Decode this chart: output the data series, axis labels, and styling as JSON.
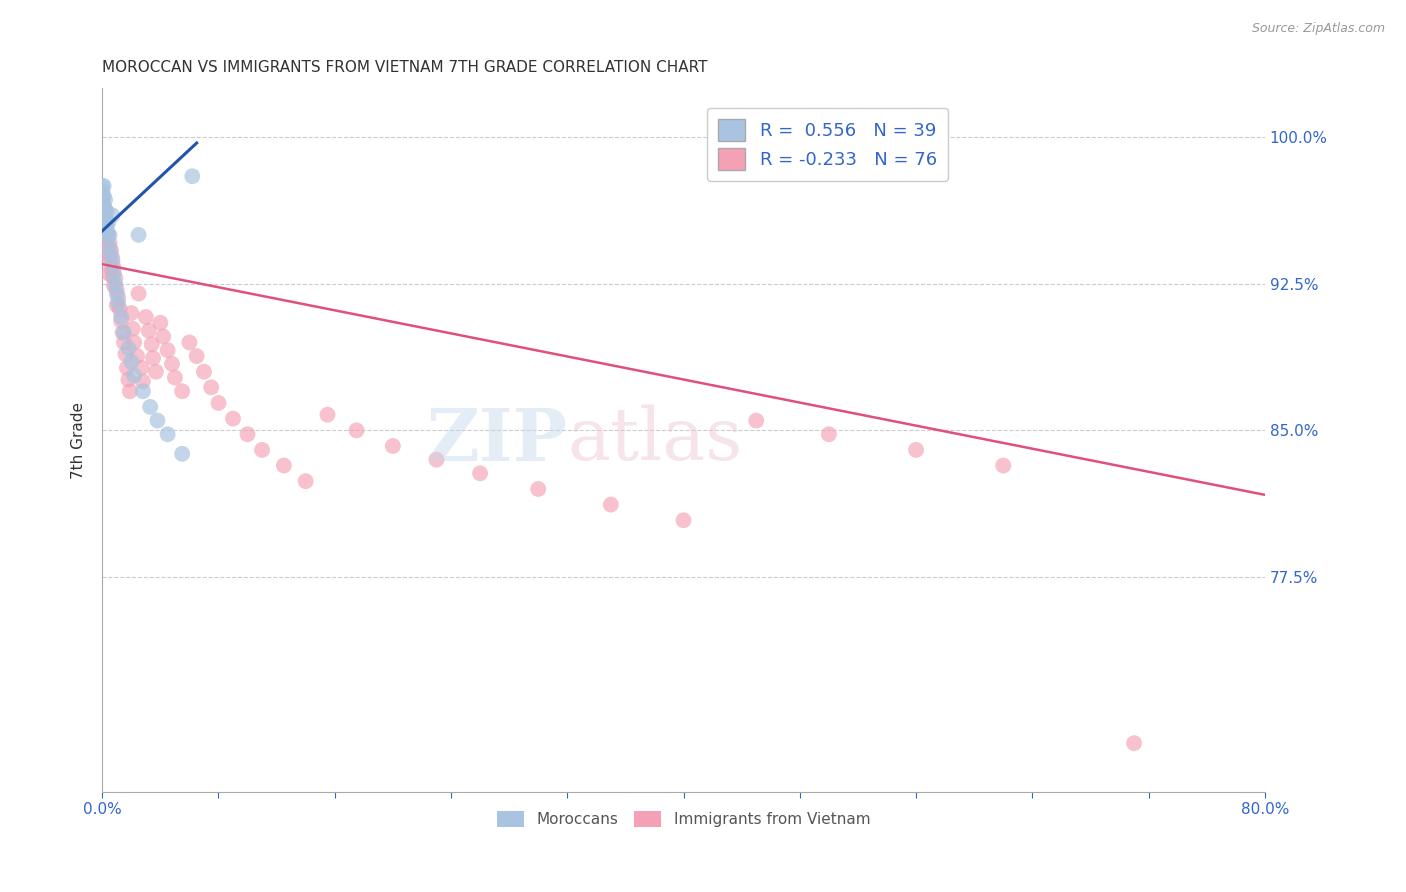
{
  "title": "MOROCCAN VS IMMIGRANTS FROM VIETNAM 7TH GRADE CORRELATION CHART",
  "source": "Source: ZipAtlas.com",
  "ylabel": "7th Grade",
  "blue_color": "#a8c4e0",
  "pink_color": "#f4a0b5",
  "blue_line_color": "#2255aa",
  "pink_line_color": "#e0507a",
  "xlim": [
    0.0,
    0.8
  ],
  "ylim": [
    0.665,
    1.025
  ],
  "ytick_values": [
    0.775,
    0.85,
    0.925,
    1.0
  ],
  "ytick_labels": [
    "77.5%",
    "85.0%",
    "92.5%",
    "100.0%"
  ],
  "xtick_values": [
    0.0,
    0.08,
    0.16,
    0.24,
    0.32,
    0.4,
    0.48,
    0.56,
    0.64,
    0.72,
    0.8
  ],
  "xtick_labels": [
    "0.0%",
    "",
    "",
    "",
    "",
    "",
    "",
    "",
    "",
    "",
    "80.0%"
  ],
  "blue_trend_x": [
    0.0,
    0.065
  ],
  "blue_trend_y": [
    0.952,
    0.997
  ],
  "pink_trend_x": [
    0.0,
    0.8
  ],
  "pink_trend_y": [
    0.935,
    0.817
  ],
  "moroccan_x": [
    0.0,
    0.0,
    0.0,
    0.0,
    0.0,
    0.0,
    0.001,
    0.001,
    0.001,
    0.002,
    0.002,
    0.002,
    0.002,
    0.003,
    0.003,
    0.003,
    0.004,
    0.004,
    0.005,
    0.005,
    0.006,
    0.007,
    0.007,
    0.008,
    0.009,
    0.01,
    0.011,
    0.013,
    0.015,
    0.018,
    0.02,
    0.022,
    0.025,
    0.028,
    0.033,
    0.038,
    0.045,
    0.055,
    0.062
  ],
  "moroccan_y": [
    0.975,
    0.972,
    0.969,
    0.966,
    0.963,
    0.96,
    0.975,
    0.97,
    0.965,
    0.968,
    0.963,
    0.958,
    0.953,
    0.962,
    0.957,
    0.952,
    0.956,
    0.95,
    0.95,
    0.944,
    0.94,
    0.936,
    0.96,
    0.93,
    0.925,
    0.92,
    0.915,
    0.908,
    0.9,
    0.892,
    0.885,
    0.878,
    0.95,
    0.87,
    0.862,
    0.855,
    0.848,
    0.838,
    0.98
  ],
  "vietnam_x": [
    0.0,
    0.0,
    0.0,
    0.001,
    0.001,
    0.001,
    0.002,
    0.002,
    0.002,
    0.003,
    0.003,
    0.003,
    0.004,
    0.004,
    0.005,
    0.005,
    0.005,
    0.006,
    0.006,
    0.007,
    0.007,
    0.008,
    0.008,
    0.009,
    0.01,
    0.01,
    0.011,
    0.012,
    0.013,
    0.014,
    0.015,
    0.016,
    0.017,
    0.018,
    0.019,
    0.02,
    0.021,
    0.022,
    0.024,
    0.025,
    0.027,
    0.028,
    0.03,
    0.032,
    0.034,
    0.035,
    0.037,
    0.04,
    0.042,
    0.045,
    0.048,
    0.05,
    0.055,
    0.06,
    0.065,
    0.07,
    0.075,
    0.08,
    0.09,
    0.1,
    0.11,
    0.125,
    0.14,
    0.155,
    0.175,
    0.2,
    0.23,
    0.26,
    0.3,
    0.35,
    0.4,
    0.45,
    0.5,
    0.56,
    0.62,
    0.71
  ],
  "vietnam_y": [
    0.97,
    0.963,
    0.956,
    0.965,
    0.958,
    0.952,
    0.96,
    0.953,
    0.946,
    0.955,
    0.948,
    0.94,
    0.95,
    0.943,
    0.946,
    0.938,
    0.93,
    0.942,
    0.933,
    0.938,
    0.929,
    0.933,
    0.924,
    0.928,
    0.922,
    0.914,
    0.918,
    0.912,
    0.906,
    0.9,
    0.895,
    0.889,
    0.882,
    0.876,
    0.87,
    0.91,
    0.902,
    0.895,
    0.888,
    0.92,
    0.882,
    0.875,
    0.908,
    0.901,
    0.894,
    0.887,
    0.88,
    0.905,
    0.898,
    0.891,
    0.884,
    0.877,
    0.87,
    0.895,
    0.888,
    0.88,
    0.872,
    0.864,
    0.856,
    0.848,
    0.84,
    0.832,
    0.824,
    0.858,
    0.85,
    0.842,
    0.835,
    0.828,
    0.82,
    0.812,
    0.804,
    0.855,
    0.848,
    0.84,
    0.832,
    0.69
  ]
}
